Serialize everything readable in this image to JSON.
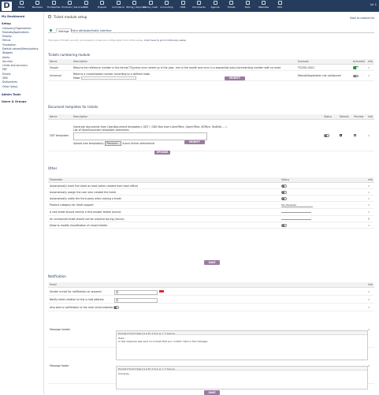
{
  "app": {
    "logo_letter": "D",
    "user_menu": "Id: 1"
  },
  "topmenu": [
    {
      "label": "Home",
      "icon": "home-icon"
    },
    {
      "label": "Members",
      "icon": "members-icon"
    },
    {
      "label": "Thirdparties",
      "icon": "thirdparties-icon"
    },
    {
      "label": "Products | Services",
      "icon": "products-icon"
    },
    {
      "label": "MRP",
      "icon": "mrp-icon"
    },
    {
      "label": "Projects",
      "icon": "projects-icon"
    },
    {
      "label": "Commerce",
      "icon": "commerce-icon"
    },
    {
      "label": "Billing | Payment",
      "icon": "billing-icon"
    },
    {
      "label": "Banks | Cash",
      "icon": "bank-icon"
    },
    {
      "label": "Accounting",
      "icon": "accounting-icon"
    },
    {
      "label": "HRM",
      "icon": "hrm-icon"
    },
    {
      "label": "Documents",
      "icon": "documents-icon"
    },
    {
      "label": "Agenda",
      "icon": "agenda-icon"
    },
    {
      "label": "Tickets",
      "icon": "tickets-icon"
    },
    {
      "label": "Tools",
      "icon": "tools-icon"
    },
    {
      "label": "Websites",
      "icon": "websites-icon"
    },
    {
      "label": "POS",
      "icon": "pos-icon"
    }
  ],
  "sidebar": {
    "dashboard": "My Dashboard",
    "setup": "Setup",
    "items": [
      "Company/Organization",
      "Modules/Applications",
      "Display",
      "Menus",
      "Translation",
      "Default values/filters/sorting",
      "Widgets",
      "Alerts",
      "Security",
      "Limits and accuracy",
      "PDF",
      "Emails",
      "SMS",
      "Dictionaries",
      "Other Setup"
    ],
    "admin_tools": "Admin Tools",
    "users_groups": "Users & Groups"
  },
  "page": {
    "title": "Ticket module setup",
    "back_link": "Back to module list",
    "tabs": [
      "Settings",
      "Extra attributes",
      "Public interface"
    ],
    "info_text": "The type of ticket, priority and analytic codes are configurable from dictionaries.",
    "info_link": "Click here to go to Dictionary setup"
  },
  "numbering": {
    "heading": "Tickets numbering module",
    "headers": [
      "Name",
      "Description",
      "Example",
      "Activated",
      "Info"
    ],
    "rows": [
      {
        "name": "Simple",
        "desc": "Returns the reference number in the format TSyymm-nnnn where yy is the year, mm is the month and nnnn is a sequential auto-incrementing number with no reset",
        "example": "TS2301-0001",
        "activated": true
      },
      {
        "name": "Universal",
        "desc": "Returns a customizable number according to a defined mask",
        "mask_label": "Mask:",
        "button": "MODIFY",
        "example": "Module/Application not configured",
        "activated": false
      }
    ]
  },
  "documents": {
    "heading": "Document templates for tickets",
    "headers": [
      "Name",
      "Description",
      "Status",
      "Default",
      "Preview",
      "Info"
    ],
    "row_name": "ODT templates",
    "desc1": "Generate documents from OpenDocument templates (.ODT / .ODS files from LibreOffice, OpenOffice, KOffice, TextEdit ,...)",
    "desc2": "List of OpenDocument templates directories",
    "modify_button": "MODIFY",
    "upload_label": "Upload new template(s):",
    "browse_label": "Parcourir...",
    "no_file": "Aucun fichier sélectionné.",
    "upload_button": "UPLOAD"
  },
  "other": {
    "heading": "Other",
    "headers": [
      "Parameter",
      "Status",
      "Info"
    ],
    "rows": [
      {
        "label": "Automatically mark the ticket as read (when created from back office)",
        "kind": "toggle"
      },
      {
        "label": "Automatically assign the user who created the ticket",
        "kind": "toggle"
      },
      {
        "label": "Automatically notify the third party when closing a ticket",
        "kind": "toggle"
      },
      {
        "label": "Product category for ticket support",
        "kind": "select",
        "value": "Sto-Fantastic"
      },
      {
        "label": "A new ticket should receive a first answer before (hours):",
        "kind": "input"
      },
      {
        "label": "An unresolved ticket should not be unactive during (hours):",
        "kind": "input"
      },
      {
        "label": "Allow to modify classification of closed tickets",
        "kind": "toggle"
      }
    ],
    "save_button": "SAVE"
  },
  "notification": {
    "heading": "Notification",
    "headers": [
      "Email",
      "Info"
    ],
    "sender_label": "Sender e-mail for notification on answers",
    "sender_value": "@",
    "notify_label": "Notify ticket creation to this e-mail address",
    "notify_value": "@",
    "also_label": "Also send a notification to the main email address",
    "header_label": "Message header",
    "header_text1": "Hello,",
    "header_text2": "A new response was sent on a ticket that you contact. Here is the message:",
    "footer_label": "Message footer",
    "footer_text": "Sincerely,",
    "editor_toolbar": "Format ▾  Font ▾  Size ▾  A  A  B  I  U  S  ≡  ≡  ⇐  ⇒  Source",
    "save_button": "SAVE"
  },
  "colors": {
    "topbar": "#263c5c",
    "accent": "#9b7ba0",
    "toggle_on": "#1e8f4c",
    "save_red": "#d32f2f"
  }
}
